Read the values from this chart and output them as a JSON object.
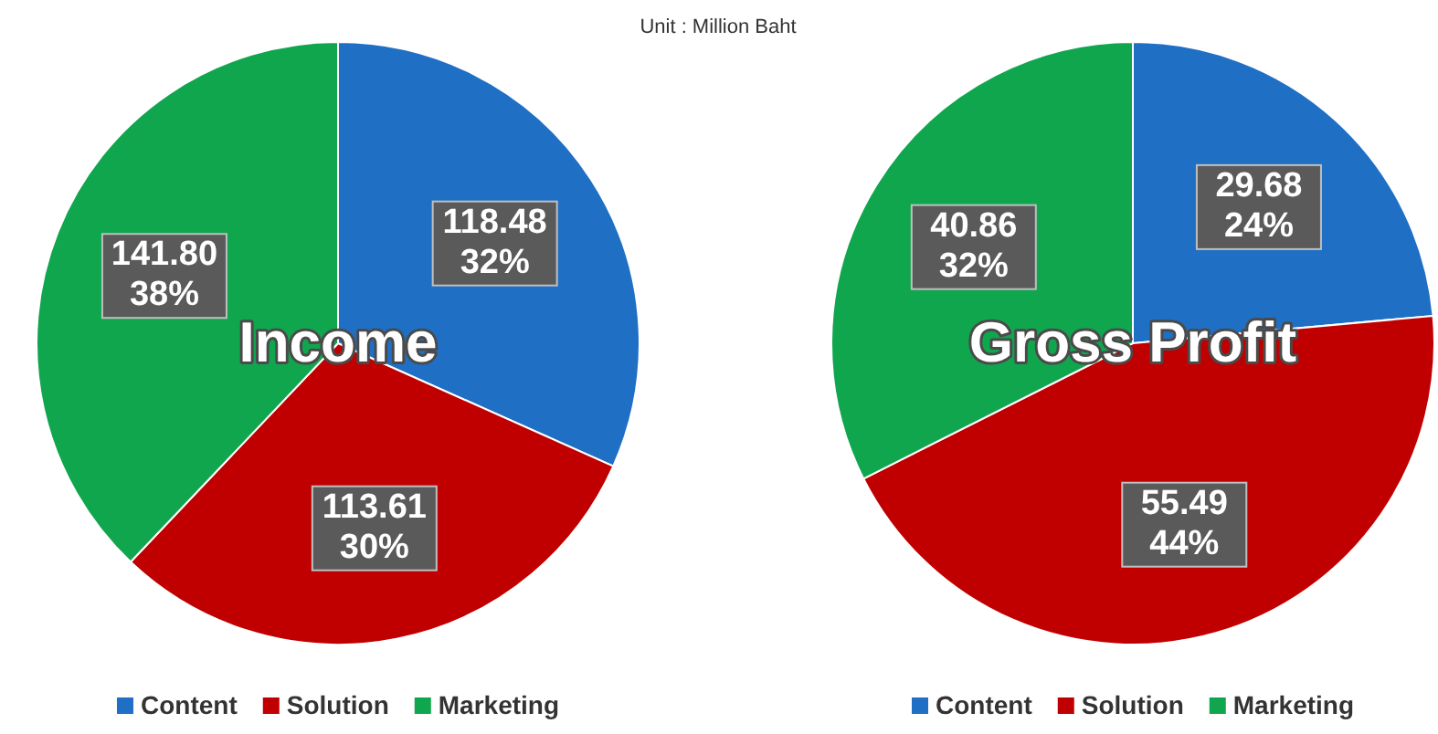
{
  "chart_data": [
    {
      "type": "pie",
      "title": "Income",
      "annotations": [
        "Unit : Million Baht"
      ],
      "categories": [
        "Content",
        "Solution",
        "Marketing"
      ],
      "values": [
        118.48,
        113.61,
        141.8
      ],
      "colors": [
        "#1f6fc5",
        "#c00000",
        "#10a64e"
      ],
      "value_labels": [
        "118.48\n32%",
        "113.61\n30%",
        "141.80\n38%"
      ],
      "legend": "bottom"
    },
    {
      "type": "pie",
      "title": "Gross Profit",
      "categories": [
        "Content",
        "Solution",
        "Marketing"
      ],
      "values": [
        29.68,
        55.49,
        40.86
      ],
      "colors": [
        "#1f6fc5",
        "#c00000",
        "#10a64e"
      ],
      "value_labels": [
        "29.68\n24%",
        "55.49\n44%",
        "40.86\n32%"
      ],
      "legend": "bottom"
    }
  ]
}
